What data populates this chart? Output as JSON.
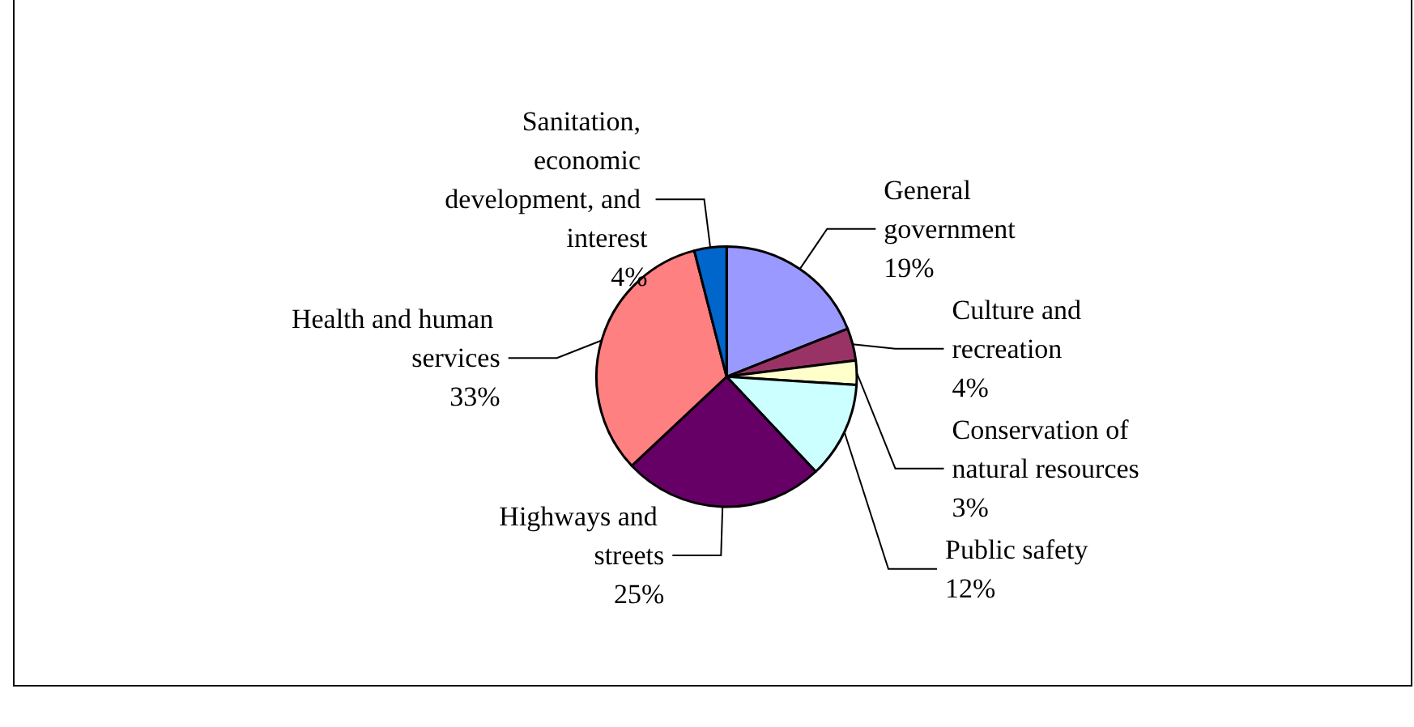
{
  "chart_data": {
    "type": "pie",
    "categories": [
      "General government",
      "Culture and recreation",
      "Conservation of natural resources",
      "Public safety",
      "Highways and streets",
      "Health and human services",
      "Sanitation, economic development, and interest"
    ],
    "values": [
      19,
      4,
      3,
      12,
      25,
      33,
      4
    ],
    "colors": [
      "#9999ff",
      "#993366",
      "#ffffcc",
      "#ccffff",
      "#660066",
      "#ff8080",
      "#0066cc"
    ],
    "value_labels": [
      "19%",
      "4%",
      "3%",
      "12%",
      "25%",
      "33%",
      "4%"
    ],
    "legend": false
  }
}
